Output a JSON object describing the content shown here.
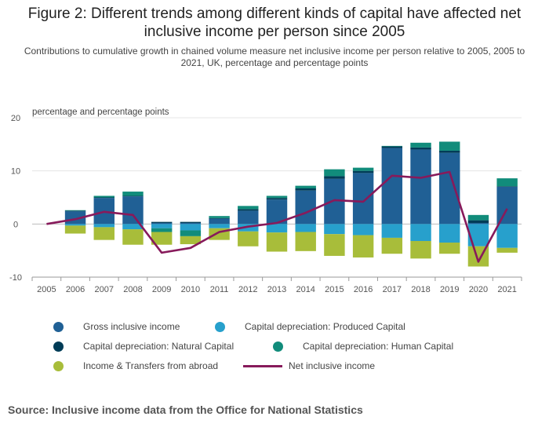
{
  "title": "Figure 2: Different trends among different kinds of capital have affected net inclusive income per person since 2005",
  "subtitle": "Contributions to cumulative growth in chained volume measure net inclusive income per person relative to 2005, 2005 to 2021, UK, percentage and percentage points",
  "source": "Source: Inclusive income data from the Office for National Statistics",
  "chart_data": {
    "type": "bar",
    "stacked": true,
    "ylabel": "percentage and percentage points",
    "ylim": [
      -10,
      20
    ],
    "yticks": [
      -10,
      0,
      10,
      20
    ],
    "grid": true,
    "legend_position": "bottom",
    "categories": [
      "2005",
      "2006",
      "2007",
      "2008",
      "2009",
      "2010",
      "2011",
      "2012",
      "2013",
      "2014",
      "2015",
      "2016",
      "2017",
      "2018",
      "2019",
      "2020",
      "2021"
    ],
    "series": [
      {
        "name": "Gross inclusive income",
        "type": "bar",
        "color": "#206095",
        "values": [
          0,
          2.4,
          4.9,
          5.2,
          0.2,
          0.2,
          1.0,
          2.5,
          4.6,
          6.3,
          8.5,
          9.6,
          14.3,
          14.0,
          13.4,
          0.2,
          7.0
        ]
      },
      {
        "name": "Capital depreciation: Produced Capital",
        "type": "bar",
        "color": "#27a0cc",
        "values": [
          0,
          -0.3,
          -0.6,
          -1.0,
          -0.8,
          -1.2,
          -0.8,
          -1.4,
          -1.6,
          -1.5,
          -1.9,
          -2.1,
          -2.6,
          -3.2,
          -3.5,
          -4.2,
          -4.5
        ]
      },
      {
        "name": "Capital depreciation: Natural Capital",
        "type": "bar",
        "color": "#003c57",
        "values": [
          0,
          0.1,
          0.1,
          0.1,
          0.2,
          0.2,
          0.1,
          0.3,
          0.3,
          0.4,
          0.5,
          0.4,
          0.3,
          0.4,
          0.4,
          0.5,
          0.1
        ]
      },
      {
        "name": "Capital depreciation: Human Capital",
        "type": "bar",
        "color": "#118c7b",
        "values": [
          0,
          0.1,
          0.3,
          0.8,
          -0.7,
          -1.1,
          0.4,
          0.6,
          0.4,
          0.5,
          1.3,
          0.6,
          0.1,
          0.9,
          1.7,
          1.0,
          1.5
        ]
      },
      {
        "name": "Income & Transfers from abroad",
        "type": "bar",
        "color": "#a8bd3a",
        "values": [
          0,
          -1.5,
          -2.4,
          -2.9,
          -2.4,
          -1.5,
          -2.2,
          -2.8,
          -3.6,
          -3.6,
          -4.1,
          -4.2,
          -3.0,
          -3.3,
          -2.1,
          -3.8,
          -0.9
        ]
      },
      {
        "name": "Net inclusive income",
        "type": "line",
        "color": "#871a5b",
        "values": [
          0,
          0.9,
          2.3,
          1.7,
          -5.4,
          -4.5,
          -1.5,
          -0.5,
          0.2,
          2.1,
          4.5,
          4.2,
          9.1,
          8.7,
          9.8,
          -7.1,
          2.9
        ]
      }
    ]
  },
  "legend": [
    {
      "label": "Gross inclusive income",
      "color": "#206095",
      "kind": "circle"
    },
    {
      "label": "Capital depreciation: Produced Capital",
      "color": "#27a0cc",
      "kind": "circle"
    },
    {
      "label": "Capital depreciation: Natural Capital",
      "color": "#003c57",
      "kind": "circle"
    },
    {
      "label": "Capital depreciation: Human Capital",
      "color": "#118c7b",
      "kind": "circle"
    },
    {
      "label": "Income & Transfers from abroad",
      "color": "#a8bd3a",
      "kind": "circle"
    },
    {
      "label": "Net inclusive income",
      "color": "#871a5b",
      "kind": "line"
    }
  ]
}
